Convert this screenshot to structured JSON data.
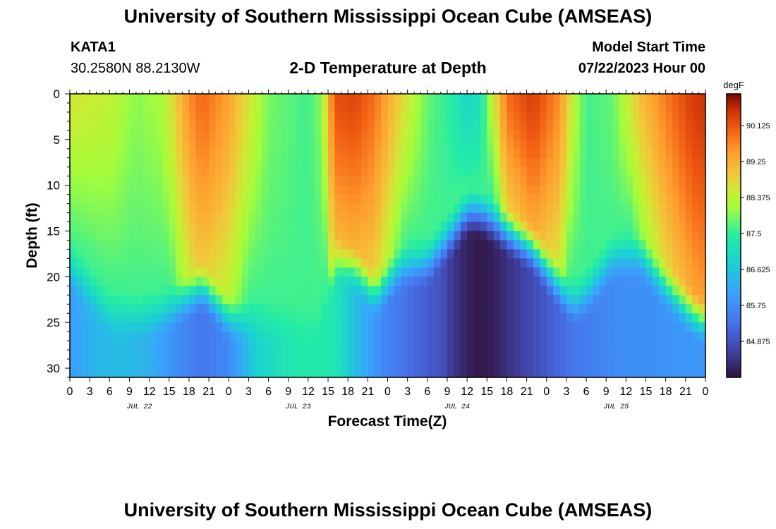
{
  "header": {
    "title": "University of Southern Mississippi Ocean Cube (AMSEAS)",
    "station": "KATA1",
    "coordinates": "30.2580N  88.2130W",
    "subtitle": "2-D Temperature at Depth",
    "model_start_label": "Model Start Time",
    "model_start_value": "07/22/2023 Hour 00"
  },
  "footer": {
    "title": "University of Southern Mississippi Ocean Cube (AMSEAS)"
  },
  "chart_data": {
    "type": "heatmap",
    "title": "2-D Temperature at Depth",
    "xlabel": "Forecast Time(Z)",
    "ylabel": "Depth (ft)",
    "x_ticks": [
      "0",
      "3",
      "6",
      "9",
      "12",
      "15",
      "18",
      "21",
      "0",
      "3",
      "6",
      "9",
      "12",
      "15",
      "18",
      "21",
      "0",
      "3",
      "6",
      "9",
      "12",
      "15",
      "18",
      "21",
      "0",
      "3",
      "6",
      "9",
      "12",
      "15",
      "18",
      "21",
      "0"
    ],
    "x_hours": [
      0,
      96
    ],
    "date_labels": [
      {
        "label": "JUL 22",
        "hour": 10.5
      },
      {
        "label": "JUL 23",
        "hour": 34.5
      },
      {
        "label": "JUL 24",
        "hour": 58.5
      },
      {
        "label": "JUL 25",
        "hour": 82.5
      }
    ],
    "y_ticks": [
      0,
      5,
      10,
      15,
      20,
      25,
      30
    ],
    "ylim": [
      0,
      31
    ],
    "colorbar": {
      "unit": "degF",
      "ticks": [
        84.875,
        85.75,
        86.625,
        87.5,
        88.375,
        89.25,
        90.125
      ],
      "range": [
        84.0,
        90.9
      ]
    },
    "mixed_layer_keyframes": {
      "hours": [
        0,
        6,
        10,
        14,
        18,
        20,
        24,
        30,
        36,
        38,
        40,
        43,
        46,
        50,
        54,
        58,
        60,
        62,
        66,
        70,
        74,
        76,
        78,
        82,
        86,
        90,
        94,
        96
      ],
      "depth_ft": [
        16,
        21,
        21.5,
        21,
        19,
        18,
        21.5,
        22,
        22.5,
        22,
        15,
        16,
        19,
        16,
        15.5,
        12,
        10,
        10,
        12,
        14,
        18,
        20,
        19,
        15,
        14.5,
        18,
        21,
        22
      ],
      "surface_temp_f": [
        88.6,
        88.4,
        88.0,
        88.2,
        89.6,
        90.0,
        89.4,
        87.9,
        87.6,
        88.0,
        90.2,
        90.3,
        89.9,
        88.8,
        87.8,
        87.4,
        86.9,
        87.2,
        89.9,
        90.4,
        89.6,
        88.4,
        87.6,
        87.8,
        89.0,
        89.8,
        90.4,
        90.5
      ]
    },
    "bottom_temp_keyframes": {
      "hours": [
        0,
        4,
        8,
        12,
        16,
        20,
        24,
        28,
        32,
        36,
        40,
        44,
        48,
        52,
        56,
        58,
        60,
        62,
        64,
        68,
        72,
        76,
        80,
        84,
        88,
        92,
        96
      ],
      "temp_f": [
        86.0,
        86.4,
        86.5,
        86.3,
        85.8,
        85.4,
        85.7,
        86.8,
        87.2,
        87.4,
        87.3,
        86.3,
        85.6,
        85.2,
        84.9,
        84.5,
        84.2,
        84.1,
        84.2,
        84.6,
        85.0,
        85.4,
        85.6,
        85.8,
        85.8,
        85.9,
        85.9
      ]
    }
  }
}
